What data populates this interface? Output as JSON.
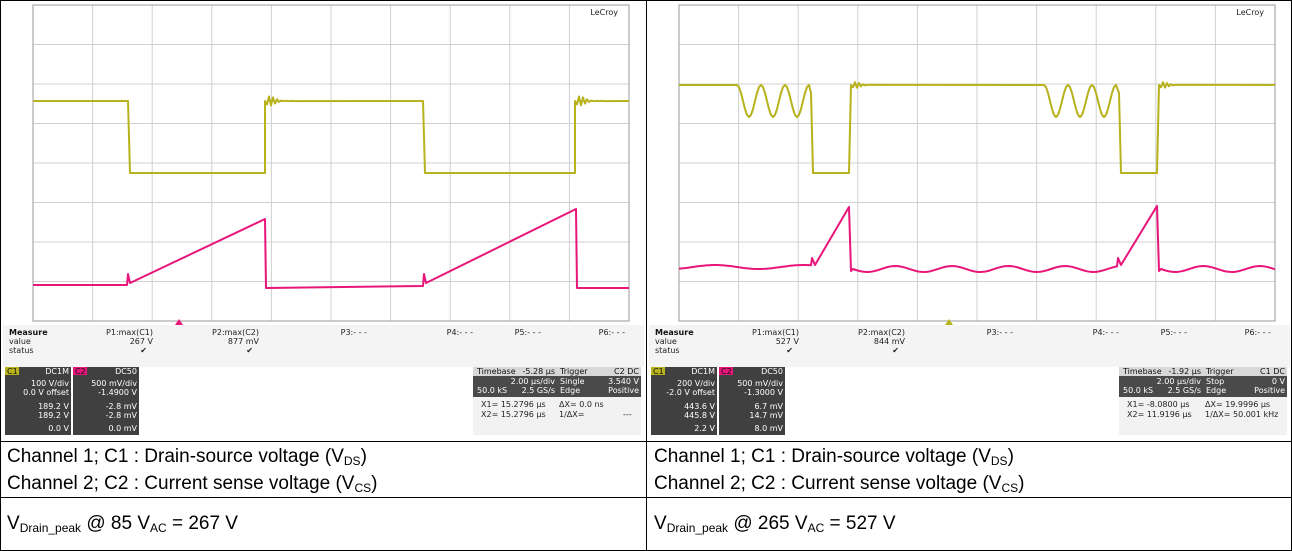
{
  "colors": {
    "ch1": "#b8b21c",
    "ch2": "#e8157a",
    "grid": "#d0d0d0",
    "gridBg": "#ffffff"
  },
  "panels": [
    {
      "brand": "LeCroy",
      "measure": {
        "title": "Measure",
        "row_value": "value",
        "row_status": "status",
        "cols": [
          {
            "name": "P1:max(C1)",
            "value": "267 V",
            "status": "✔"
          },
          {
            "name": "P2:max(C2)",
            "value": "877 mV",
            "status": "✔"
          },
          {
            "name": "P3:- - -",
            "value": "",
            "status": ""
          },
          {
            "name": "P4:- - -",
            "value": "",
            "status": ""
          },
          {
            "name": "P5:- - -",
            "value": "",
            "status": ""
          },
          {
            "name": "P6:- - -",
            "value": "",
            "status": ""
          }
        ]
      },
      "c1box": {
        "tag": "C1",
        "coupling": "DC1M",
        "vdiv": "100 V/div",
        "offset": "0.0 V offset",
        "r1": "189.2 V",
        "r2": "189.2 V",
        "r3": "0.0 V"
      },
      "c2box": {
        "tag": "C2",
        "coupling": "DC50",
        "vdiv": "500 mV/div",
        "offset": "-1.4900 V",
        "r1": "-2.8 mV",
        "r2": "-2.8 mV",
        "r3": "0.0 mV"
      },
      "timebase": {
        "label": "Timebase",
        "tval": "-5.28 µs",
        "div": "2.00 µs/div",
        "samp": "50.0 kS",
        "rate": "2.5 GS/s",
        "trig": "Trigger",
        "trigch": "C2 DC",
        "mode": "Single",
        "level": "3.540 V",
        "type": "Edge",
        "slope": "Positive",
        "x1": "X1= 15.2796 µs",
        "dx": "ΔX= 0.0 ns",
        "x2": "X2= 15.2796 µs",
        "inv": "1/ΔX=",
        "invv": "---"
      },
      "chart_data": {
        "type": "line",
        "series": [
          {
            "name": "C1",
            "desc": "Drain-source voltage"
          },
          {
            "name": "C2",
            "desc": "Current sense voltage"
          }
        ]
      }
    },
    {
      "brand": "LeCroy",
      "measure": {
        "title": "Measure",
        "row_value": "value",
        "row_status": "status",
        "cols": [
          {
            "name": "P1:max(C1)",
            "value": "527 V",
            "status": "✔"
          },
          {
            "name": "P2:max(C2)",
            "value": "844 mV",
            "status": "✔"
          },
          {
            "name": "P3:- - -",
            "value": "",
            "status": ""
          },
          {
            "name": "P4:- - -",
            "value": "",
            "status": ""
          },
          {
            "name": "P5:- - -",
            "value": "",
            "status": ""
          },
          {
            "name": "P6:- - -",
            "value": "",
            "status": ""
          }
        ]
      },
      "c1box": {
        "tag": "C1",
        "coupling": "DC1M",
        "vdiv": "200 V/div",
        "offset": "-2.0 V offset",
        "r1": "443.6 V",
        "r2": "445.8 V",
        "r3": "2.2 V"
      },
      "c2box": {
        "tag": "C2",
        "coupling": "DC50",
        "vdiv": "500 mV/div",
        "offset": "-1.3000 V",
        "r1": "6.7 mV",
        "r2": "14.7 mV",
        "r3": "8.0 mV"
      },
      "timebase": {
        "label": "Timebase",
        "tval": "-1.92 µs",
        "div": "2.00 µs/div",
        "samp": "50.0 kS",
        "rate": "2.5 GS/s",
        "trig": "Trigger",
        "trigch": "C1 DC",
        "mode": "Stop",
        "level": "0 V",
        "type": "Edge",
        "slope": "Positive",
        "x1": "X1= -8.0800 µs",
        "dx": "ΔX= 19.9996 µs",
        "x2": "X2= 11.9196 µs",
        "inv": "1/ΔX= 50.001 kHz",
        "invv": ""
      },
      "chart_data": {
        "type": "line",
        "series": [
          {
            "name": "C1",
            "desc": "Drain-source voltage"
          },
          {
            "name": "C2",
            "desc": "Current sense voltage"
          }
        ]
      }
    }
  ],
  "captions": {
    "ch1": "Channel 1; C1 : Drain-source voltage (V",
    "ch1sub": "DS",
    "ch2": "Channel 2; C2 : Current sense voltage (V",
    "ch2sub": "CS",
    "close": ")",
    "left_peak_a": "V",
    "left_peak_sub": "Drain_peak",
    "left_peak_b": " @ 85 V",
    "left_peak_sub2": "AC",
    "left_peak_c": " = 267 V",
    "right_peak_a": "V",
    "right_peak_sub": "Drain_peak",
    "right_peak_b": " @ 265 V",
    "right_peak_sub2": "AC",
    "right_peak_c": " = 527 V"
  }
}
